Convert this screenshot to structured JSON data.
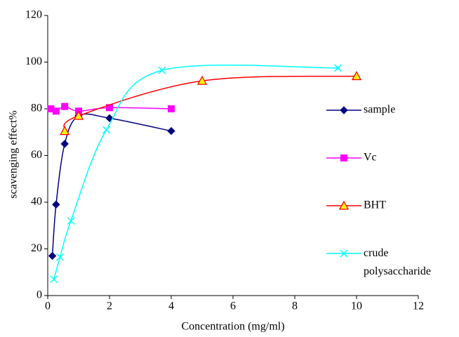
{
  "chart_data": {
    "type": "scatter",
    "x_label": "Concentration (mg/ml)",
    "y_label": "scavenging effect%",
    "xlim": [
      0,
      12
    ],
    "xticks": [
      0,
      2,
      4,
      6,
      8,
      10,
      12
    ],
    "ylim": [
      0,
      120
    ],
    "yticks": [
      0,
      20,
      40,
      60,
      80,
      100,
      120
    ],
    "smooth": true,
    "series": [
      {
        "name": "sample",
        "color": "#000080",
        "marker": "diamond",
        "x": [
          0.15,
          0.27,
          0.55,
          1,
          2,
          4
        ],
        "values": [
          17,
          39,
          65,
          77,
          76,
          70.5
        ]
      },
      {
        "name": "Vc",
        "color": "#ff00ff",
        "marker": "square",
        "x": [
          0.1,
          0.27,
          0.55,
          1,
          2,
          4
        ],
        "values": [
          80,
          79,
          81,
          79,
          80.5,
          80
        ]
      },
      {
        "name": "BHT",
        "color": "#ff0000",
        "marker": "triangle",
        "x": [
          0.55,
          1,
          5,
          10
        ],
        "values": [
          70.5,
          77,
          92,
          94
        ]
      },
      {
        "name": "crude polysaccharide",
        "color": "#00ffff",
        "marker": "x",
        "x": [
          0.2,
          0.4,
          0.75,
          1.9,
          3.7,
          9.4
        ],
        "values": [
          7,
          16.5,
          32,
          71,
          96.5,
          97.5
        ]
      }
    ]
  }
}
